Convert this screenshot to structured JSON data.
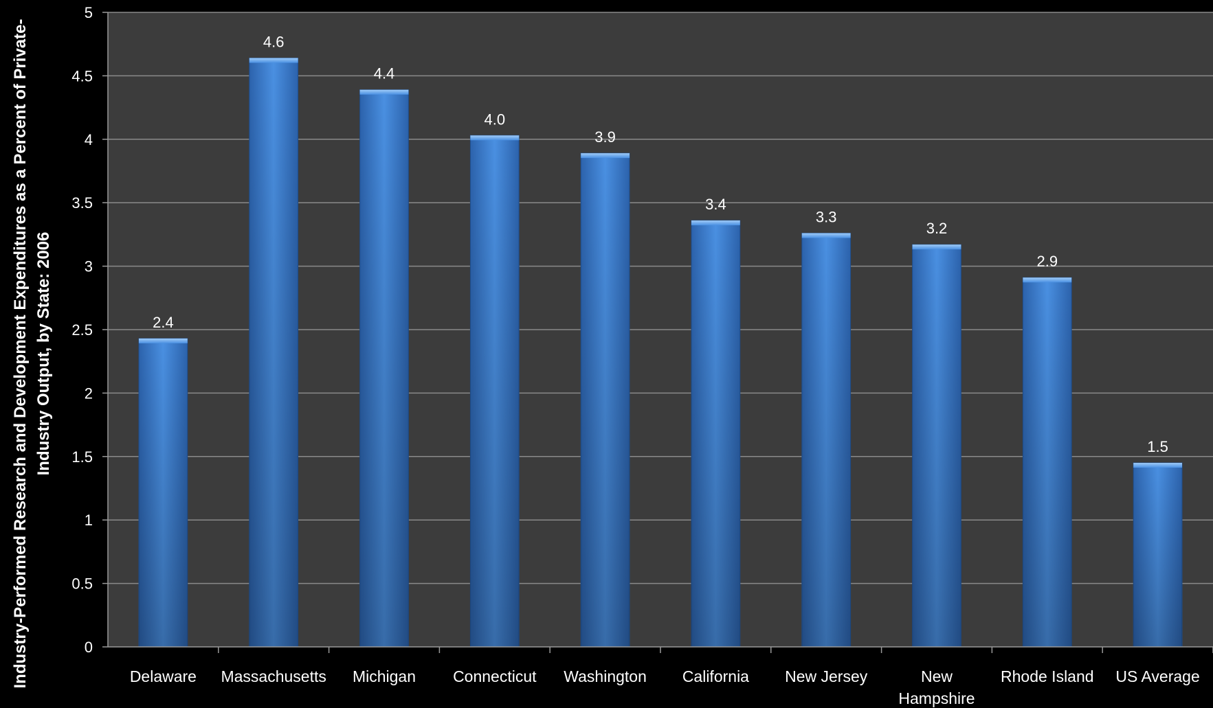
{
  "chart_data": {
    "type": "bar",
    "title": "",
    "xlabel": "",
    "ylabel_lines": [
      "Industry-Performed Research and Development Expenditures as a Percent of Private-",
      "Industry Output, by State: 2006"
    ],
    "categories": [
      "Delaware",
      "Massachusetts",
      "Michigan",
      "Connecticut",
      "Washington",
      "California",
      "New Jersey",
      "New Hampshire",
      "Rhode Island",
      "US Average"
    ],
    "category_lines": [
      [
        "Delaware"
      ],
      [
        "Massachusetts"
      ],
      [
        "Michigan"
      ],
      [
        "Connecticut"
      ],
      [
        "Washington"
      ],
      [
        "California"
      ],
      [
        "New Jersey"
      ],
      [
        "New",
        "Hampshire"
      ],
      [
        "Rhode Island"
      ],
      [
        "US Average"
      ]
    ],
    "values": [
      2.43,
      4.64,
      4.39,
      4.03,
      3.89,
      3.36,
      3.26,
      3.17,
      2.91,
      1.45
    ],
    "data_labels": [
      "2.4",
      "4.6",
      "4.4",
      "4.0",
      "3.9",
      "3.4",
      "3.3",
      "3.2",
      "2.9",
      "1.5"
    ],
    "ylim": [
      0,
      5
    ],
    "yticks": [
      "0",
      "0.5",
      "1",
      "1.5",
      "2",
      "2.5",
      "3",
      "3.5",
      "4",
      "4.5",
      "5"
    ],
    "ytick_values": [
      0,
      0.5,
      1,
      1.5,
      2,
      2.5,
      3,
      3.5,
      4,
      4.5,
      5
    ],
    "grid": true,
    "legend": "none",
    "colors": {
      "page_background": "#000000",
      "plot_background": "#3c3c3c",
      "bar_light": "#4a90e2",
      "bar_dark": "#2f5d9e",
      "gridline": "#8a8a8a",
      "axis": "#9a9a9a",
      "text": "#ffffff"
    }
  }
}
